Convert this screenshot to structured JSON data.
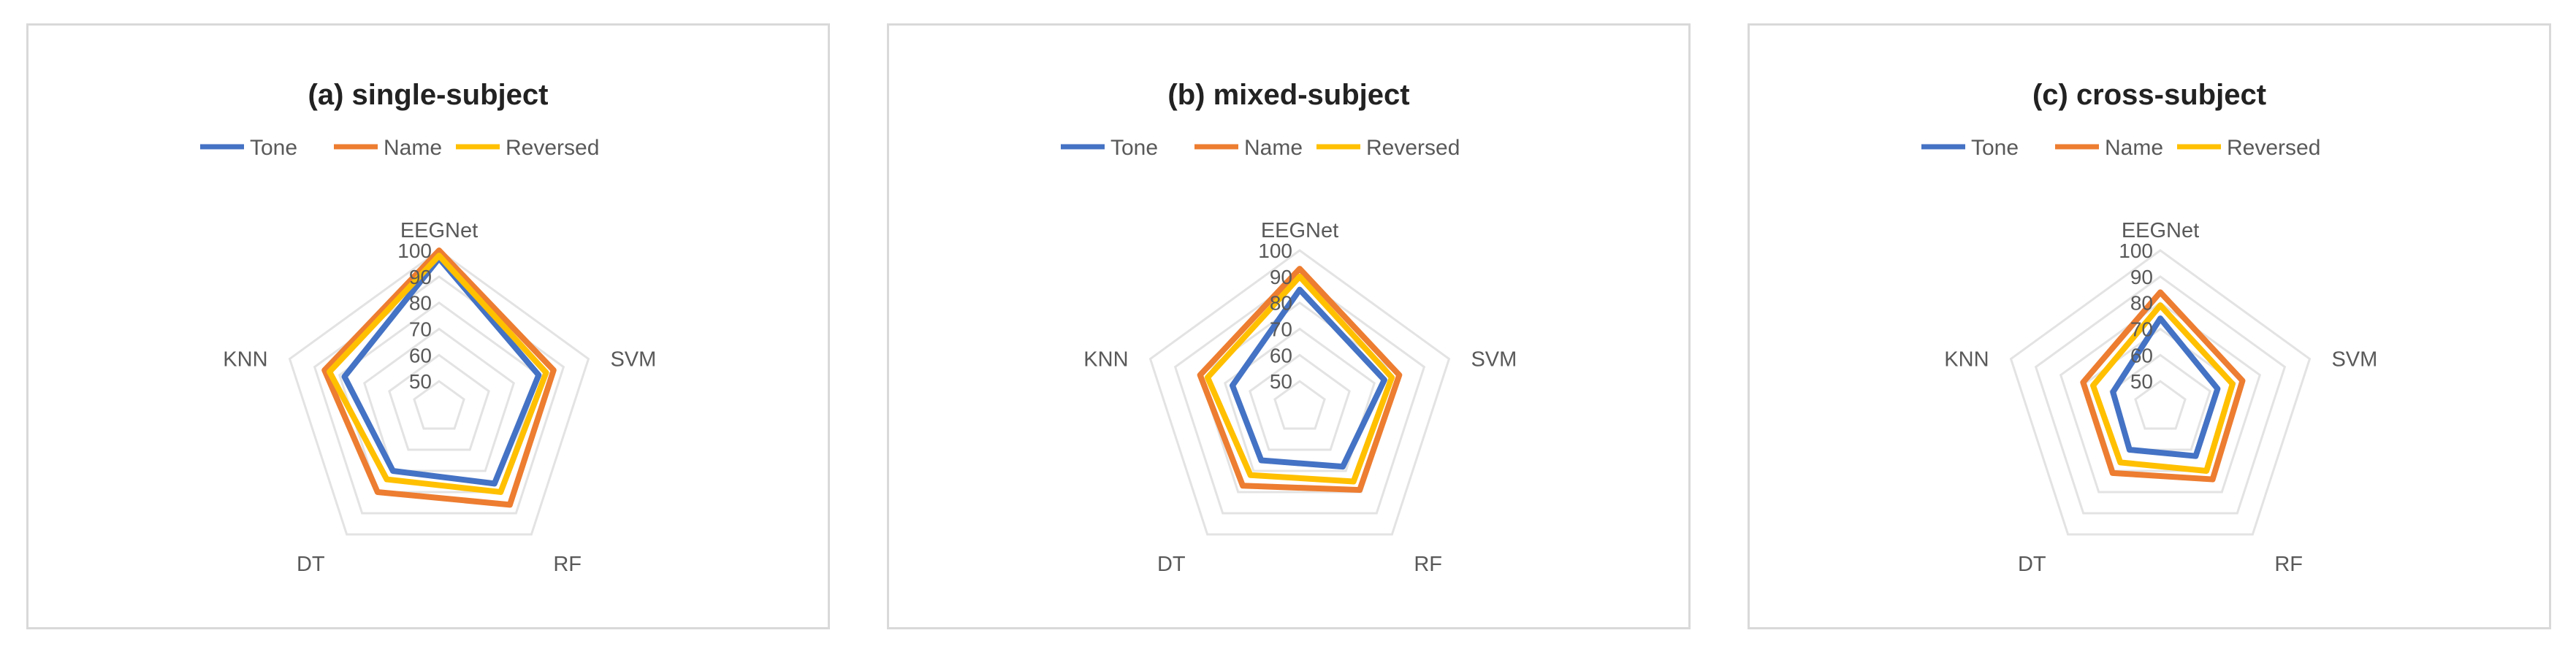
{
  "chart_data": [
    {
      "type": "radar",
      "title": "(a) single-subject",
      "axes": [
        "EEGNet",
        "SVM",
        "RF",
        "DT",
        "KNN"
      ],
      "ticks": [
        "50",
        "60",
        "70",
        "80",
        "90",
        "100"
      ],
      "range": [
        40,
        100
      ],
      "grid": true,
      "legend_position": "top",
      "series": [
        {
          "name": "Tone",
          "color": "#4472C4",
          "values": [
            97,
            80,
            76,
            70,
            78
          ]
        },
        {
          "name": "Name",
          "color": "#ED7D31",
          "values": [
            100,
            86,
            86,
            80,
            86
          ]
        },
        {
          "name": "Reversed",
          "color": "#FFC000",
          "values": [
            98,
            83,
            80,
            74,
            84
          ]
        }
      ]
    },
    {
      "type": "radar",
      "title": "(b) mixed-subject",
      "axes": [
        "EEGNet",
        "SVM",
        "RF",
        "DT",
        "KNN"
      ],
      "ticks": [
        "50",
        "60",
        "70",
        "80",
        "90",
        "100"
      ],
      "range": [
        40,
        100
      ],
      "grid": true,
      "legend_position": "top",
      "series": [
        {
          "name": "Tone",
          "color": "#4472C4",
          "values": [
            85,
            74,
            68,
            65,
            67
          ]
        },
        {
          "name": "Name",
          "color": "#ED7D31",
          "values": [
            93,
            80,
            79,
            77,
            80
          ]
        },
        {
          "name": "Reversed",
          "color": "#FFC000",
          "values": [
            90,
            77,
            75,
            72,
            77
          ]
        }
      ]
    },
    {
      "type": "radar",
      "title": "(c) cross-subject",
      "axes": [
        "EEGNet",
        "SVM",
        "RF",
        "DT",
        "KNN"
      ],
      "ticks": [
        "50",
        "60",
        "70",
        "80",
        "90",
        "100"
      ],
      "range": [
        40,
        100
      ],
      "grid": true,
      "legend_position": "top",
      "series": [
        {
          "name": "Tone",
          "color": "#4472C4",
          "values": [
            74,
            63,
            63,
            60,
            59
          ]
        },
        {
          "name": "Name",
          "color": "#ED7D31",
          "values": [
            84,
            73,
            74,
            71,
            71
          ]
        },
        {
          "name": "Reversed",
          "color": "#FFC000",
          "values": [
            79,
            69,
            70,
            66,
            67
          ]
        }
      ]
    }
  ]
}
